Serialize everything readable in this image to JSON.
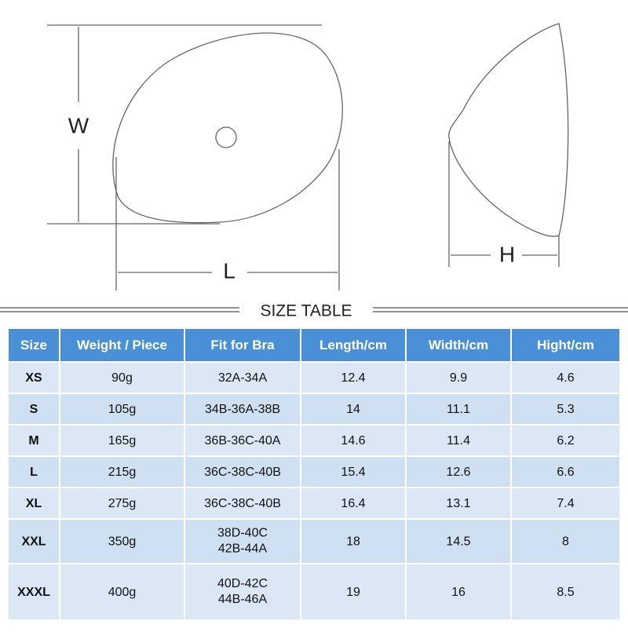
{
  "diagram": {
    "width_label": "W",
    "length_label": "L",
    "height_label": "H"
  },
  "table": {
    "title": "SIZE TABLE",
    "header": [
      "Size",
      "Weight / Piece",
      "Fit for Bra",
      "Length/cm",
      "Width/cm",
      "Hight/cm"
    ],
    "rows": [
      [
        "XS",
        "90g",
        "32A-34A",
        "12.4",
        "9.9",
        "4.6"
      ],
      [
        "S",
        "105g",
        "34B-36A-38B",
        "14",
        "11.1",
        "5.3"
      ],
      [
        "M",
        "165g",
        "36B-36C-40A",
        "14.6",
        "11.4",
        "6.2"
      ],
      [
        "L",
        "215g",
        "36C-38C-40B",
        "15.4",
        "12.6",
        "6.6"
      ],
      [
        "XL",
        "275g",
        "36C-38C-40B",
        "16.4",
        "13.1",
        "7.4"
      ],
      [
        "XXL",
        "350g",
        [
          "38D-40C",
          "42B-44A"
        ],
        "18",
        "14.5",
        "8"
      ],
      [
        "XXXL",
        "400g",
        [
          "40D-42C",
          "44B-46A"
        ],
        "19",
        "16",
        "8.5"
      ]
    ]
  }
}
